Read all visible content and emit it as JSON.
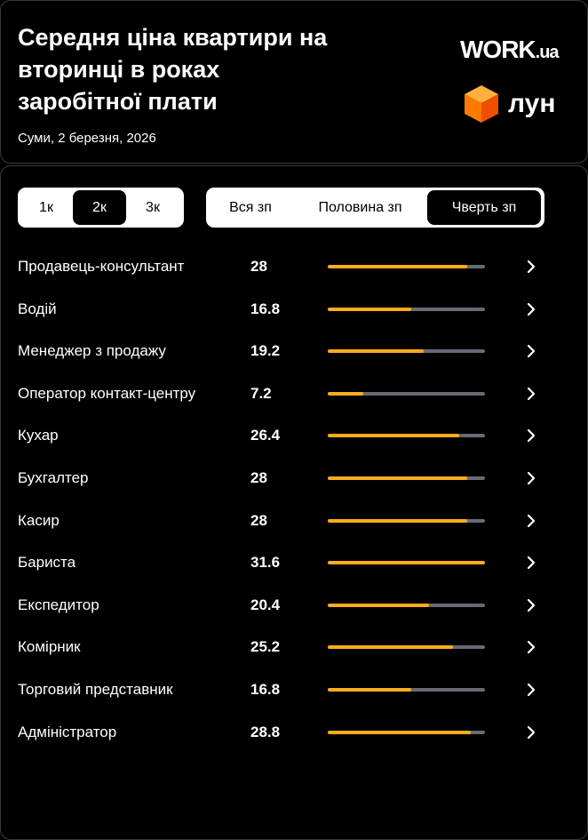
{
  "header": {
    "title": "Середня ціна квартири на вторинці в роках заробітної плати",
    "subtitle": "Суми, 2 березня, 2026",
    "logo_work": "WORK",
    "logo_work_suffix": ".ua",
    "logo_lun": "лун"
  },
  "filters": {
    "size_options": [
      "1к",
      "2к",
      "3к"
    ],
    "size_selected": "2к",
    "salary_options": [
      "Вся зп",
      "Половина зп",
      "Чверть зп"
    ],
    "salary_selected": "Чверть зп"
  },
  "colors": {
    "accent": "#f9ac1c",
    "track": "#6a6a75",
    "background": "#000000"
  },
  "rows_max": 31.6,
  "rows": [
    {
      "job": "Продавець-консультант",
      "value": "28"
    },
    {
      "job": "Водій",
      "value": "16.8"
    },
    {
      "job": "Менеджер з продажу",
      "value": "19.2"
    },
    {
      "job": "Оператор контакт-центру",
      "value": "7.2"
    },
    {
      "job": "Кухар",
      "value": "26.4"
    },
    {
      "job": "Бухгалтер",
      "value": "28"
    },
    {
      "job": "Касир",
      "value": "28"
    },
    {
      "job": "Бариста",
      "value": "31.6"
    },
    {
      "job": "Експедитор",
      "value": "20.4"
    },
    {
      "job": "Комірник",
      "value": "25.2"
    },
    {
      "job": "Торговий представник",
      "value": "16.8"
    },
    {
      "job": "Адміністратор",
      "value": "28.8"
    }
  ],
  "row_icon": "chevron-right-icon"
}
